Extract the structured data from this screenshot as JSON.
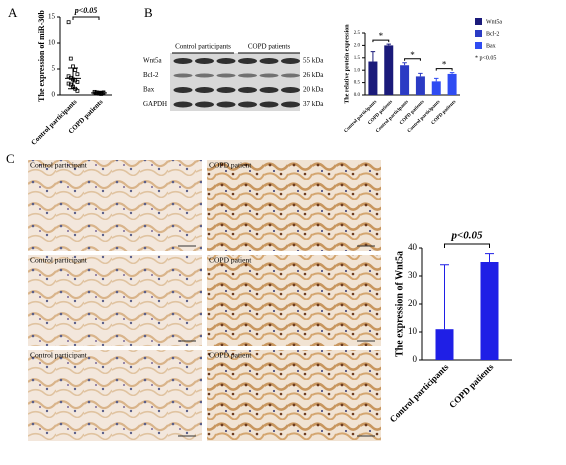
{
  "panels": [
    "A",
    "B",
    "C"
  ],
  "blot": {
    "groups": [
      "Control participants",
      "COPD patients"
    ],
    "rows": [
      "Wnt5a",
      "Bcl-2",
      "Bax",
      "GAPDH"
    ],
    "sizes": [
      "55 kDa",
      "26 kDa",
      "20 kDa",
      "37 kDa"
    ]
  },
  "images": {
    "labels": [
      "Control participant",
      "COPD patient",
      "Control participant",
      "COPD patient",
      "Control participant",
      "COPD patient"
    ]
  },
  "chart_data": [
    {
      "type": "dot",
      "y_label": "The expression of miR-30b",
      "annotation": "p<0.05",
      "categories": [
        "Control participants",
        "COPD patients"
      ],
      "points": [
        [
          14,
          7,
          5.5,
          4.8,
          4,
          3.6,
          3.3,
          3,
          2.8,
          2.5,
          2.2,
          2,
          1.6,
          1.2,
          0.8
        ],
        [
          0.6,
          0.5,
          0.45,
          0.4,
          0.35,
          0.3,
          0.3,
          0.25,
          0.2,
          0.5
        ]
      ],
      "means": [
        3.2,
        0.4
      ],
      "sd": [
        2,
        0.2
      ],
      "ylim": [
        0,
        15
      ],
      "yticks": [
        0,
        5,
        10,
        15
      ],
      "color": "#000000"
    },
    {
      "type": "bar",
      "y_label": "The relative protein expression",
      "categories": [
        "Control participants",
        "COPD patients",
        "Control participants",
        "COPD patients",
        "Control participants",
        "COPD patients"
      ],
      "series": [
        {
          "name": "Wnt5a",
          "color": "#1a1a7a",
          "values": [
            1.35,
            2.0,
            null,
            null,
            null,
            null
          ],
          "errors": [
            0.4,
            0.05,
            null,
            null,
            null,
            null
          ]
        },
        {
          "name": "Bcl-2",
          "color": "#2b3bc4",
          "values": [
            null,
            null,
            1.2,
            0.75,
            null,
            null
          ],
          "errors": [
            null,
            null,
            0.1,
            0.12,
            null,
            null
          ]
        },
        {
          "name": "Bax",
          "color": "#2f4cf2",
          "values": [
            null,
            null,
            null,
            null,
            0.55,
            0.85
          ],
          "errors": [
            null,
            null,
            null,
            null,
            0.12,
            0.05
          ]
        }
      ],
      "significance": [
        "*",
        "*",
        "*"
      ],
      "legend_note": "* p<0.05",
      "ylim": [
        0,
        2.5
      ],
      "yticks": [
        {
          "value": 0,
          "label": "0.0"
        },
        0.5,
        {
          "value": 1,
          "label": "1.0"
        },
        1.5,
        {
          "value": 2,
          "label": "2.0"
        },
        2.5
      ]
    },
    {
      "type": "bar",
      "y_label": "The expression of Wnt5a",
      "annotation": "p<0.05",
      "categories": [
        "Control participants",
        "COPD patients"
      ],
      "series": [
        {
          "name": "Wnt5a",
          "color": "#1f1fe6",
          "values": [
            11,
            35
          ],
          "errors": [
            23,
            3
          ]
        }
      ],
      "ylim": [
        0,
        40
      ],
      "yticks": [
        0,
        10,
        20,
        30,
        40
      ]
    }
  ]
}
